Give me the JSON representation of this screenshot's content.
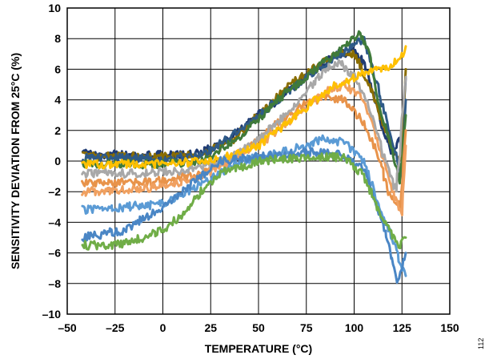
{
  "chart_data": {
    "type": "line",
    "xlabel": "TEMPERATURE (°C)",
    "ylabel": "SENSITIVITY DEVIATION FROM 25°C (%)",
    "xlim": [
      -50,
      150
    ],
    "ylim": [
      -10,
      10
    ],
    "x_ticks": [
      -50,
      -25,
      0,
      25,
      50,
      75,
      100,
      125,
      150
    ],
    "y_ticks": [
      -10,
      -8,
      -6,
      -4,
      -2,
      0,
      2,
      4,
      6,
      8,
      10
    ],
    "x_tick_labels": [
      "–50",
      "–25",
      "0",
      "25",
      "50",
      "75",
      "100",
      "125",
      "150"
    ],
    "y_tick_labels": [
      "–10",
      "–8",
      "–6",
      "–4",
      "–2",
      "0",
      "2",
      "4",
      "6",
      "8",
      "10"
    ],
    "grid": true,
    "figure_id": "112",
    "series": [
      {
        "color": "#1f3b73",
        "x": [
          -42,
          -20,
          0,
          20,
          35,
          50,
          65,
          80,
          92,
          100,
          105,
          110,
          115,
          120,
          125,
          127
        ],
        "y": [
          0.5,
          0.4,
          0.4,
          0.5,
          1.5,
          3.0,
          4.5,
          6.0,
          7.0,
          7.2,
          6.5,
          4.5,
          2.0,
          0.5,
          1.5,
          5.5
        ]
      },
      {
        "color": "#8a6d00",
        "x": [
          -42,
          -20,
          0,
          20,
          35,
          50,
          65,
          80,
          90,
          100,
          108,
          115,
          120,
          125,
          127
        ],
        "y": [
          0.3,
          0.3,
          0.3,
          0.4,
          1.2,
          3.0,
          4.8,
          6.2,
          7.0,
          7.0,
          5.0,
          2.5,
          1.0,
          0.0,
          6.0
        ]
      },
      {
        "color": "#2e5a88",
        "x": [
          -42,
          -20,
          0,
          20,
          40,
          60,
          75,
          90,
          100,
          105,
          110,
          118,
          125,
          127
        ],
        "y": [
          0.2,
          0.2,
          0.2,
          0.3,
          2.0,
          4.0,
          5.5,
          6.8,
          7.5,
          8.0,
          6.0,
          2.0,
          -1.0,
          4.0
        ]
      },
      {
        "color": "#3f7a3a",
        "x": [
          -42,
          -20,
          0,
          20,
          40,
          60,
          80,
          95,
          103,
          108,
          112,
          118,
          124,
          127
        ],
        "y": [
          -0.2,
          -0.2,
          -0.2,
          0.0,
          1.5,
          4.0,
          6.0,
          7.5,
          8.3,
          7.0,
          4.0,
          1.5,
          -1.5,
          3.0
        ]
      },
      {
        "color": "#e8934a",
        "x": [
          -42,
          -20,
          0,
          20,
          40,
          60,
          75,
          85,
          95,
          105,
          112,
          118,
          124,
          127
        ],
        "y": [
          -1.5,
          -1.4,
          -1.3,
          -0.8,
          0.5,
          2.5,
          3.8,
          4.2,
          4.0,
          2.5,
          0.5,
          -2.0,
          -3.0,
          2.0
        ]
      },
      {
        "color": "#f0a060",
        "x": [
          -42,
          -20,
          0,
          20,
          35,
          55,
          70,
          85,
          95,
          105,
          112,
          120,
          125,
          127
        ],
        "y": [
          -2.0,
          -1.9,
          -1.7,
          -1.0,
          0.0,
          1.5,
          3.0,
          4.5,
          5.0,
          4.0,
          1.5,
          -2.0,
          -3.5,
          1.0
        ]
      },
      {
        "color": "#a8a8a8",
        "x": [
          -42,
          -20,
          0,
          20,
          40,
          60,
          75,
          85,
          92,
          100,
          108,
          115,
          122,
          127
        ],
        "y": [
          -0.8,
          -0.8,
          -0.7,
          -0.5,
          0.5,
          2.5,
          4.5,
          6.0,
          6.5,
          5.5,
          3.5,
          0.5,
          -2.0,
          5.5
        ]
      },
      {
        "color": "#ffc000",
        "x": [
          -42,
          -20,
          0,
          20,
          35,
          50,
          65,
          80,
          90,
          100,
          110,
          118,
          125,
          127
        ],
        "y": [
          -0.2,
          -0.2,
          -0.2,
          0.0,
          0.3,
          1.0,
          2.5,
          4.0,
          5.0,
          5.5,
          6.0,
          6.2,
          6.8,
          7.5
        ]
      },
      {
        "color": "#5b9bd5",
        "x": [
          -42,
          -20,
          0,
          20,
          40,
          60,
          75,
          85,
          95,
          105,
          112,
          118,
          124,
          127
        ],
        "y": [
          -3.2,
          -3.0,
          -2.8,
          -1.5,
          0.0,
          0.5,
          1.0,
          1.5,
          1.2,
          0.0,
          -2.5,
          -4.5,
          -6.5,
          -7.5
        ]
      },
      {
        "color": "#4a86c5",
        "x": [
          -42,
          -20,
          0,
          15,
          30,
          50,
          70,
          85,
          95,
          105,
          112,
          118,
          123,
          127
        ],
        "y": [
          -5.0,
          -4.5,
          -3.0,
          -1.5,
          0.0,
          0.3,
          0.5,
          0.6,
          0.3,
          -0.5,
          -3.0,
          -5.5,
          -8.0,
          -6.0
        ]
      },
      {
        "color": "#70ad47",
        "x": [
          -42,
          -25,
          -10,
          0,
          10,
          20,
          30,
          50,
          70,
          85,
          95,
          105,
          112,
          118,
          124,
          127
        ],
        "y": [
          -5.5,
          -5.5,
          -5.0,
          -4.5,
          -3.5,
          -2.0,
          -0.8,
          0.0,
          0.2,
          0.3,
          0.2,
          -1.0,
          -3.0,
          -4.5,
          -5.5,
          -5.0
        ]
      }
    ]
  }
}
